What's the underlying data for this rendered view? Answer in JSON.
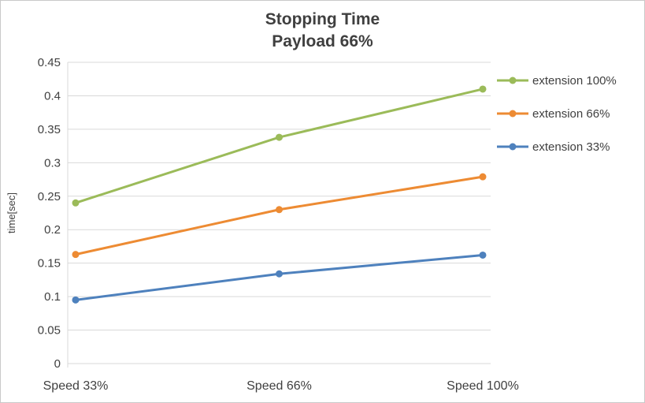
{
  "chart_data": {
    "type": "line",
    "title": "Stopping Time",
    "subtitle": "Payload 66%",
    "ylabel": "time[sec]",
    "categories": [
      "Speed 33%",
      "Speed 66%",
      "Speed 100%"
    ],
    "series": [
      {
        "name": "extension 100%",
        "color": "#9bbb59",
        "values": [
          0.24,
          0.338,
          0.41
        ]
      },
      {
        "name": "extension 66%",
        "color": "#ed8b33",
        "values": [
          0.163,
          0.23,
          0.279
        ]
      },
      {
        "name": "extension 33%",
        "color": "#4e81bd",
        "values": [
          0.095,
          0.134,
          0.162
        ]
      }
    ],
    "ylim": [
      0,
      0.45
    ],
    "ytick_step": 0.05,
    "grid": true,
    "legend_position": "right"
  },
  "styles": {
    "grid_color": "#d9d9d9",
    "axis_color": "#d9d9d9",
    "text_color": "#404040",
    "title_color": "#3f3f3f",
    "background": "#ffffff"
  }
}
